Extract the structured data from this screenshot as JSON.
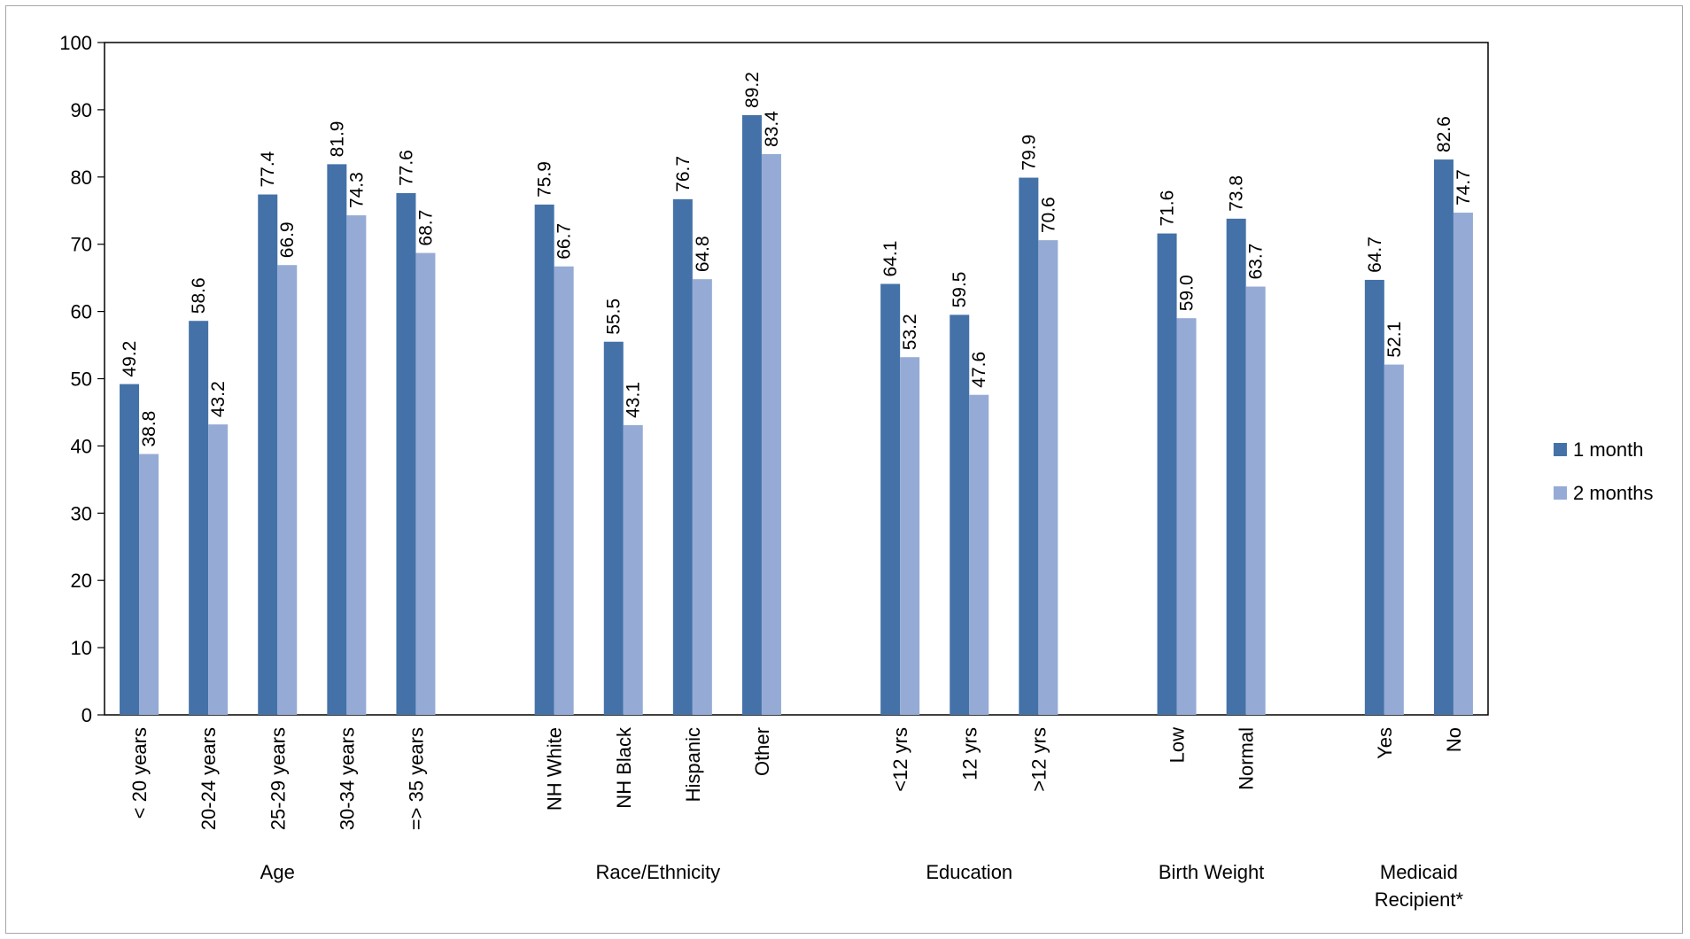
{
  "chart_data": {
    "type": "bar",
    "ylim": [
      0,
      100
    ],
    "yticks": [
      "0",
      "10",
      "20",
      "30",
      "40",
      "50",
      "60",
      "70",
      "80",
      "90",
      "100"
    ],
    "grid": false,
    "legend_position": "right",
    "groups": [
      {
        "label": "Age",
        "label_lines": [
          "Age"
        ],
        "categories": [
          "< 20 years",
          "20-24 years",
          "25-29 years",
          "30-34 years",
          "=> 35 years"
        ]
      },
      {
        "label": "Race/Ethnicity",
        "label_lines": [
          "Race/Ethnicity"
        ],
        "categories": [
          "NH White",
          "NH Black",
          "Hispanic",
          "Other"
        ]
      },
      {
        "label": "Education",
        "label_lines": [
          "Education"
        ],
        "categories": [
          "<12 yrs",
          "12 yrs",
          ">12 yrs"
        ]
      },
      {
        "label": "Birth Weight",
        "label_lines": [
          "Birth Weight"
        ],
        "categories": [
          "Low",
          "Normal"
        ]
      },
      {
        "label": "Medicaid Recipient*",
        "label_lines": [
          "Medicaid",
          "Recipient*"
        ],
        "categories": [
          "Yes",
          "No"
        ]
      }
    ],
    "series": [
      {
        "name": "1 month",
        "color": "#4472a8",
        "values": [
          49.2,
          58.6,
          77.4,
          81.9,
          77.6,
          75.9,
          55.5,
          76.7,
          89.2,
          64.1,
          59.5,
          79.9,
          71.6,
          73.8,
          64.7,
          82.6
        ],
        "labels": [
          "49.2",
          "58.6",
          "77.4",
          "81.9",
          "77.6",
          "75.9",
          "55.5",
          "76.7",
          "89.2",
          "64.1",
          "59.5",
          "79.9",
          "71.6",
          "73.8",
          "64.7",
          "82.6"
        ]
      },
      {
        "name": "2 months",
        "color": "#95abd5",
        "values": [
          38.8,
          43.2,
          66.9,
          74.3,
          68.7,
          66.7,
          43.1,
          64.8,
          83.4,
          53.2,
          47.6,
          70.6,
          59.0,
          63.7,
          52.1,
          74.7
        ],
        "labels": [
          "38.8",
          "43.2",
          "66.9",
          "74.3",
          "68.7",
          "66.7",
          "43.1",
          "64.8",
          "83.4",
          "53.2",
          "47.6",
          "70.6",
          "59.0",
          "63.7",
          "52.1",
          "74.7"
        ]
      }
    ]
  }
}
